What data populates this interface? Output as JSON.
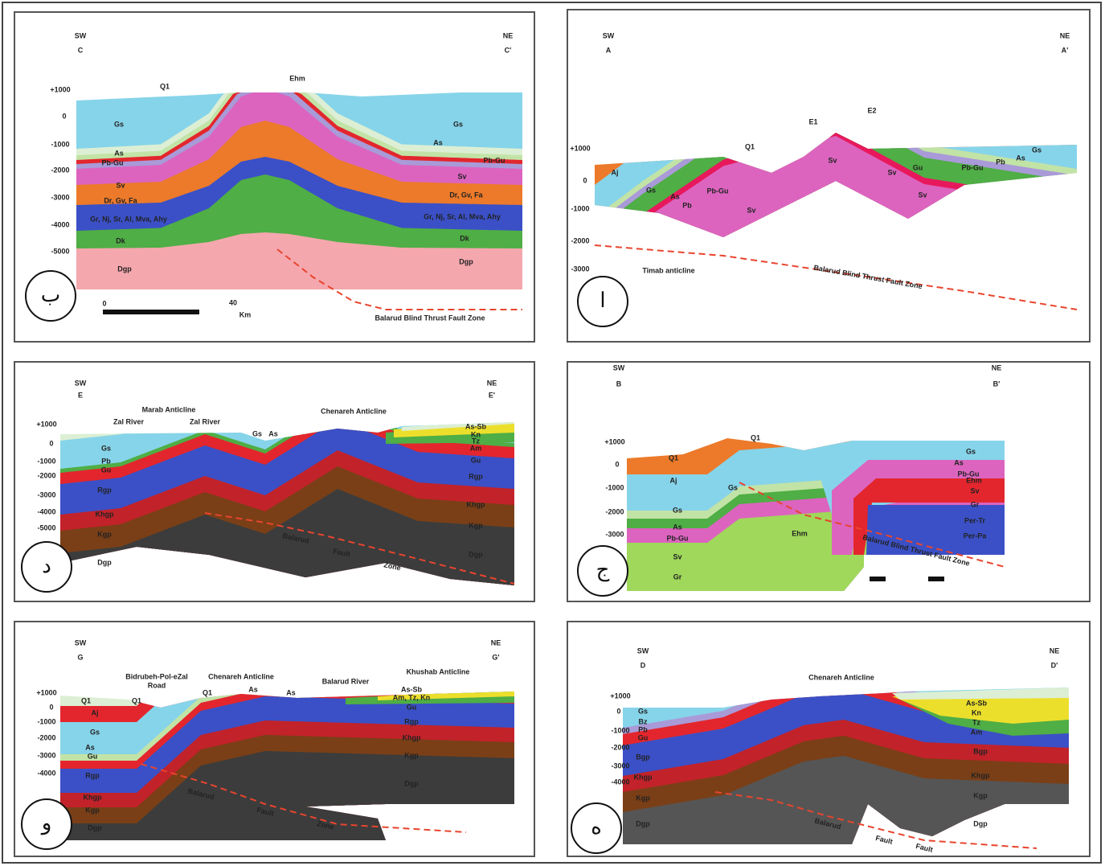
{
  "panels": [
    {
      "letter": "ب",
      "labels": [
        "SW",
        "C",
        "NE",
        "C'",
        "Q1",
        "Ehm",
        "Gs",
        "As",
        "Pb-Gu",
        "Sv",
        "Dr, Gv, Fa",
        "Gr, Nj, Sr, Al, Mva, Ahy",
        "Dk",
        "Dgp",
        "Gs",
        "As",
        "Pb-Gu",
        "Sv",
        "Dr, Gv, Fa",
        "Gr, Nj, Sr, Al, Mva, Ahy",
        "Dk",
        "Dgp",
        "0",
        "40",
        "Km",
        "Balarud Blind Thrust Fault Zone",
        "+1000",
        "0",
        "-1000",
        "-2000",
        "-3000",
        "-4000",
        "-5000"
      ]
    },
    {
      "letter": "ا",
      "labels": [
        "SW",
        "A",
        "NE",
        "A'",
        "Aj",
        "Gs",
        "As",
        "Pb",
        "Pb-Gu",
        "Sv",
        "Sv",
        "Sv",
        "Gu",
        "Pb-Gu",
        "Pb",
        "As",
        "Gs",
        "Sv",
        "Q1",
        "E1",
        "E2",
        "Timab anticline",
        "Balarud Blind Thrust Fault Zone",
        "+1000",
        "0",
        "-1000",
        "-2000",
        "-3000"
      ]
    },
    {
      "letter": "د",
      "labels": [
        "SW",
        "E",
        "NE",
        "E'",
        "Marab Anticline",
        "Zal River",
        "Zal River",
        "Chenareh Anticline",
        "Gs",
        "Pb",
        "Gu",
        "Rgp",
        "Khgp",
        "Kgp",
        "Dgp",
        "Gs",
        "As",
        "As-Sb",
        "Kn",
        "Tz",
        "Am",
        "Gu",
        "Rgp",
        "Khgp",
        "Kgp",
        "Dgp",
        "Balarud",
        "Fault",
        "Zone",
        "+1000",
        "0",
        "-1000",
        "-2000",
        "-3000",
        "-4000",
        "-5000"
      ]
    },
    {
      "letter": "ج",
      "labels": [
        "SW",
        "B",
        "NE",
        "B'",
        "Q1",
        "Q1",
        "Aj",
        "Gs",
        "Gs",
        "As",
        "Pb-Gu",
        "Sv",
        "Gr",
        "Ehm",
        "Gs",
        "As",
        "Pb-Gu",
        "Ehm",
        "Sv",
        "Gr",
        "Per-Tr",
        "Per-Pa",
        "Balarud Blind Thrust Fault Zone",
        "+1000",
        "0",
        "-1000",
        "-2000",
        "-3000"
      ]
    },
    {
      "letter": "و",
      "labels": [
        "SW",
        "G",
        "NE",
        "G'",
        "Bidrubeh-Pol-eZal",
        "Road",
        "Chenareh Anticline",
        "Balarud River",
        "Khushab Anticline",
        "Q1",
        "Q1",
        "Q1",
        "As",
        "As",
        "As-Sb",
        "Am, Tz, Kn",
        "Gu",
        "Aj",
        "Gs",
        "As",
        "Gu",
        "Rgp",
        "Khgp",
        "Kgp",
        "Dgp",
        "Rgp",
        "Khgp",
        "Kgp",
        "Dgp",
        "Balarud",
        "Fault",
        "Zone",
        "+1000",
        "0",
        "-1000",
        "-2000",
        "-3000",
        "-4000"
      ]
    },
    {
      "letter": "ه",
      "labels": [
        "SW",
        "D",
        "NE",
        "D'",
        "Chenareh Anticline",
        "Gs",
        "Bz",
        "Pb",
        "Gu",
        "Bgp",
        "Khgp",
        "Kgp",
        "Dgp",
        "As-Sb",
        "Kn",
        "Tz",
        "Am",
        "Bgp",
        "Khgp",
        "Kgp",
        "Dgp",
        "Balarud",
        "Fault",
        "Fault",
        "+1000",
        "0",
        "-1000",
        "-2000",
        "-3000",
        "-4000"
      ]
    }
  ]
}
